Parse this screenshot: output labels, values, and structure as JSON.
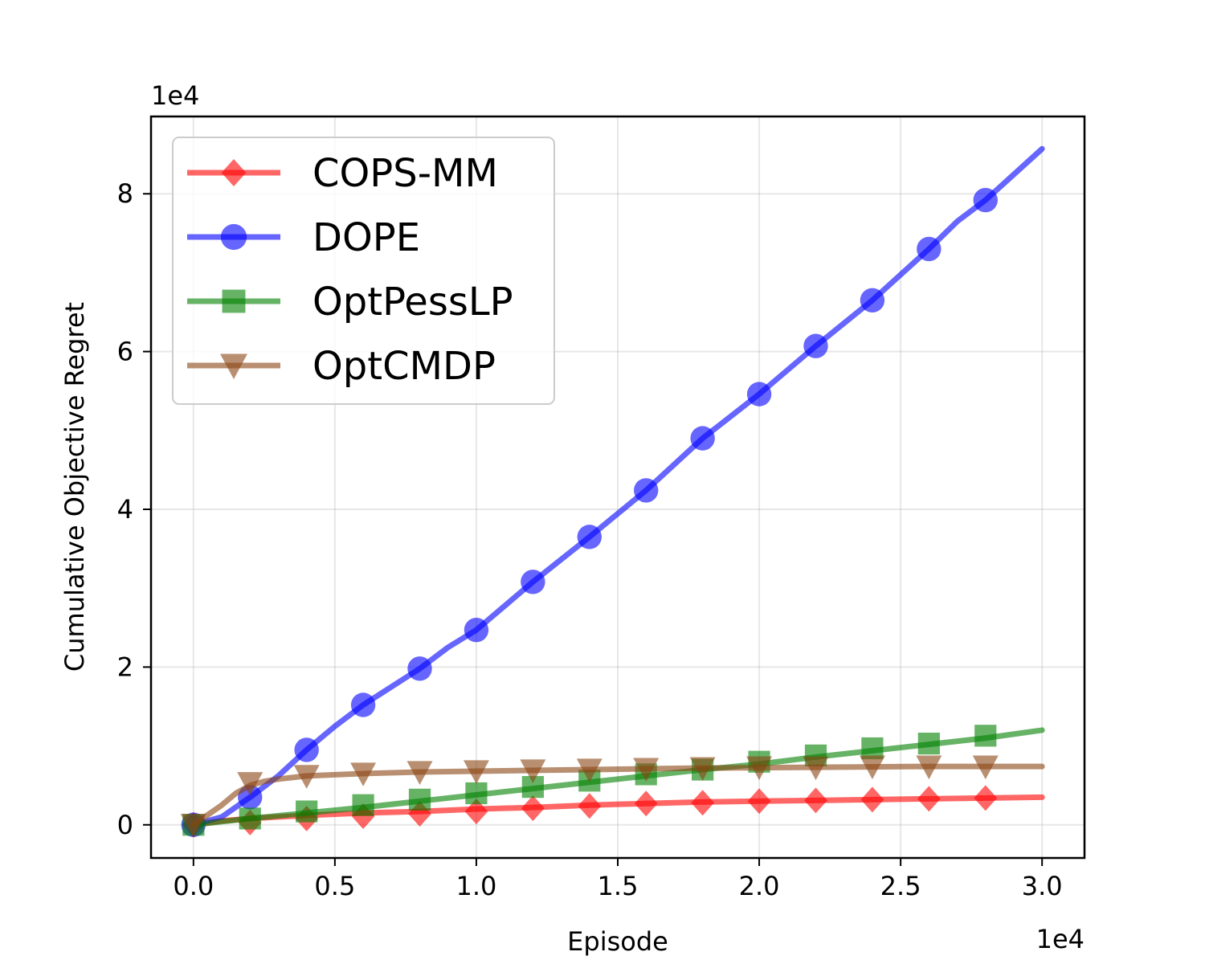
{
  "chart_data": {
    "type": "line",
    "title": "",
    "xlabel": "Episode",
    "ylabel": "Cumulative Objective Regret",
    "x_multiplier_label": "1e4",
    "y_multiplier_label": "1e4",
    "xlim": [
      -0.15,
      3.15
    ],
    "ylim": [
      -0.42,
      8.98
    ],
    "xticks": [
      0.0,
      0.5,
      1.0,
      1.5,
      2.0,
      2.5,
      3.0
    ],
    "xtick_labels": [
      "0.0",
      "0.5",
      "1.0",
      "1.5",
      "2.0",
      "2.5",
      "3.0"
    ],
    "yticks": [
      0,
      2,
      4,
      6,
      8
    ],
    "ytick_labels": [
      "0",
      "2",
      "4",
      "6",
      "8"
    ],
    "grid": true,
    "legend_position": "top-left",
    "series": [
      {
        "name": "COPS-MM",
        "color": "#ff0000",
        "marker": "diamond",
        "line": {
          "x": [
            0,
            0.1,
            0.2,
            0.4,
            0.6,
            0.8,
            1.0,
            1.2,
            1.4,
            1.6,
            1.8,
            2.0,
            2.2,
            2.4,
            2.6,
            2.8,
            3.0
          ],
          "y": [
            0,
            0.05,
            0.08,
            0.12,
            0.15,
            0.17,
            0.2,
            0.22,
            0.25,
            0.27,
            0.29,
            0.3,
            0.31,
            0.32,
            0.33,
            0.34,
            0.35
          ]
        },
        "markers": {
          "x": [
            0,
            0.2,
            0.4,
            0.6,
            0.8,
            1.0,
            1.2,
            1.4,
            1.6,
            1.8,
            2.0,
            2.2,
            2.4,
            2.6,
            2.8
          ],
          "y": [
            0,
            0.03,
            0.08,
            0.11,
            0.14,
            0.17,
            0.21,
            0.24,
            0.27,
            0.28,
            0.3,
            0.31,
            0.32,
            0.33,
            0.34
          ]
        }
      },
      {
        "name": "DOPE",
        "color": "#0000ff",
        "marker": "circle",
        "line": {
          "x": [
            0,
            0.1,
            0.2,
            0.3,
            0.4,
            0.5,
            0.6,
            0.8,
            0.9,
            1.0,
            1.2,
            1.4,
            1.6,
            1.8,
            2.0,
            2.2,
            2.4,
            2.6,
            2.7,
            2.8,
            3.0
          ],
          "y": [
            0,
            0.1,
            0.35,
            0.62,
            0.95,
            1.25,
            1.52,
            1.98,
            2.25,
            2.47,
            3.08,
            3.65,
            4.24,
            4.9,
            5.46,
            6.07,
            6.65,
            7.3,
            7.65,
            7.92,
            8.57
          ]
        },
        "markers": {
          "x": [
            0,
            0.2,
            0.4,
            0.6,
            0.8,
            1.0,
            1.2,
            1.4,
            1.6,
            1.8,
            2.0,
            2.2,
            2.4,
            2.6,
            2.8
          ],
          "y": [
            0,
            0.35,
            0.95,
            1.52,
            1.98,
            2.47,
            3.08,
            3.65,
            4.24,
            4.9,
            5.46,
            6.07,
            6.65,
            7.3,
            7.92
          ]
        }
      },
      {
        "name": "OptPessLP",
        "color": "#008000",
        "marker": "square",
        "line": {
          "x": [
            0,
            0.2,
            0.4,
            0.6,
            0.8,
            1.0,
            1.2,
            1.4,
            1.6,
            1.8,
            2.0,
            2.2,
            2.4,
            2.6,
            2.8,
            3.0
          ],
          "y": [
            0,
            0.08,
            0.15,
            0.22,
            0.3,
            0.38,
            0.46,
            0.54,
            0.62,
            0.7,
            0.77,
            0.86,
            0.94,
            1.02,
            1.1,
            1.2
          ]
        },
        "markers": {
          "x": [
            0,
            0.2,
            0.4,
            0.6,
            0.8,
            1.0,
            1.2,
            1.4,
            1.6,
            1.8,
            2.0,
            2.2,
            2.4,
            2.6,
            2.8
          ],
          "y": [
            0,
            0.08,
            0.17,
            0.25,
            0.32,
            0.4,
            0.48,
            0.56,
            0.64,
            0.7,
            0.8,
            0.88,
            0.97,
            1.03,
            1.13
          ]
        }
      },
      {
        "name": "OptCMDP",
        "color": "#8b4513",
        "marker": "triangle-down",
        "line": {
          "x": [
            0,
            0.1,
            0.15,
            0.2,
            0.25,
            0.3,
            0.4,
            0.6,
            0.8,
            1.0,
            1.4,
            1.8,
            2.2,
            2.6,
            3.0
          ],
          "y": [
            0,
            0.25,
            0.4,
            0.5,
            0.55,
            0.58,
            0.62,
            0.65,
            0.67,
            0.68,
            0.7,
            0.72,
            0.73,
            0.74,
            0.74
          ]
        },
        "markers": {
          "x": [
            0,
            0.2,
            0.4,
            0.6,
            0.8,
            1.0,
            1.2,
            1.4,
            1.6,
            1.8,
            2.0,
            2.2,
            2.4,
            2.6,
            2.8
          ],
          "y": [
            0,
            0.53,
            0.62,
            0.65,
            0.67,
            0.68,
            0.69,
            0.7,
            0.71,
            0.72,
            0.73,
            0.73,
            0.74,
            0.74,
            0.74
          ]
        }
      }
    ]
  }
}
